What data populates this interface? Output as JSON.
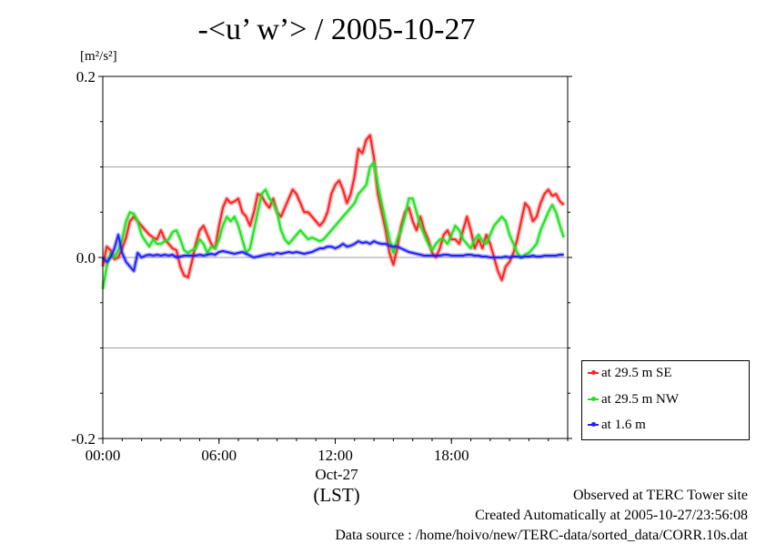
{
  "chart_data": {
    "type": "line",
    "title": "-<u’ w’> / 2005-10-27",
    "ylabel": "[m²/s²]",
    "ylim": [
      -0.2,
      0.2
    ],
    "xlim": [
      0,
      24
    ],
    "yticks": [
      {
        "value": 0.2,
        "label": "0.2"
      },
      {
        "value": 0.0,
        "label": "0.0"
      },
      {
        "value": -0.2,
        "label": "-0.2"
      }
    ],
    "ygrid": [
      0.1,
      0.0,
      -0.1
    ],
    "xticks": [
      {
        "value": 0,
        "label": "00:00"
      },
      {
        "value": 6,
        "label": "06:00"
      },
      {
        "value": 12,
        "label": "12:00"
      },
      {
        "value": 18,
        "label": "18:00"
      }
    ],
    "day_label": "Oct-27",
    "timezone_label": "(LST)",
    "grid": true,
    "legend_position": "lower-right",
    "series": [
      {
        "name": "at 29.5 m SE",
        "color": "#ff2020",
        "x": [
          0,
          0.2,
          0.4,
          0.6,
          0.8,
          1.0,
          1.2,
          1.4,
          1.6,
          1.8,
          2.0,
          2.2,
          2.4,
          2.6,
          2.8,
          3.0,
          3.2,
          3.4,
          3.6,
          3.8,
          4.0,
          4.2,
          4.4,
          4.6,
          4.8,
          5.0,
          5.2,
          5.4,
          5.6,
          5.8,
          6.0,
          6.2,
          6.4,
          6.6,
          6.8,
          7.0,
          7.2,
          7.4,
          7.6,
          7.8,
          8.0,
          8.2,
          8.4,
          8.6,
          8.8,
          9.0,
          9.2,
          9.4,
          9.6,
          9.8,
          10.0,
          10.2,
          10.4,
          10.6,
          10.8,
          11.0,
          11.2,
          11.4,
          11.6,
          11.8,
          12.0,
          12.2,
          12.4,
          12.6,
          12.8,
          13.0,
          13.2,
          13.4,
          13.6,
          13.8,
          14.0,
          14.2,
          14.4,
          14.6,
          14.8,
          15.0,
          15.2,
          15.4,
          15.6,
          15.8,
          16.0,
          16.2,
          16.4,
          16.6,
          16.8,
          17.0,
          17.2,
          17.4,
          17.6,
          17.8,
          18.0,
          18.2,
          18.4,
          18.6,
          18.8,
          19.0,
          19.2,
          19.4,
          19.6,
          19.8,
          20.0,
          20.2,
          20.4,
          20.6,
          20.8,
          21.0,
          21.2,
          21.4,
          21.6,
          21.8,
          22.0,
          22.2,
          22.4,
          22.6,
          22.8,
          23.0,
          23.2,
          23.4,
          23.6,
          23.8
        ],
        "values": [
          -0.01,
          0.012,
          0.008,
          -0.002,
          0.0,
          0.01,
          0.022,
          0.04,
          0.045,
          0.04,
          0.035,
          0.03,
          0.025,
          0.022,
          0.02,
          0.03,
          0.02,
          0.015,
          0.01,
          0.008,
          -0.01,
          -0.02,
          -0.022,
          -0.005,
          0.015,
          0.03,
          0.035,
          0.025,
          0.015,
          0.01,
          0.035,
          0.055,
          0.065,
          0.06,
          0.062,
          0.065,
          0.05,
          0.045,
          0.035,
          0.05,
          0.07,
          0.068,
          0.06,
          0.055,
          0.065,
          0.05,
          0.045,
          0.055,
          0.065,
          0.075,
          0.07,
          0.06,
          0.05,
          0.05,
          0.045,
          0.04,
          0.035,
          0.04,
          0.05,
          0.07,
          0.08,
          0.085,
          0.075,
          0.06,
          0.07,
          0.09,
          0.12,
          0.115,
          0.13,
          0.135,
          0.11,
          0.07,
          0.05,
          0.03,
          0.005,
          -0.008,
          0.01,
          0.035,
          0.05,
          0.055,
          0.04,
          0.03,
          0.045,
          0.03,
          0.02,
          0.005,
          0.0,
          0.01,
          0.025,
          0.03,
          0.02,
          0.02,
          0.015,
          0.03,
          0.045,
          0.03,
          0.01,
          0.02,
          0.01,
          0.025,
          0.015,
          0.0,
          -0.015,
          -0.025,
          -0.01,
          -0.005,
          0.005,
          0.02,
          0.04,
          0.06,
          0.055,
          0.04,
          0.045,
          0.06,
          0.07,
          0.075,
          0.068,
          0.07,
          0.062,
          0.058
        ]
      },
      {
        "name": "at 29.5 m NW",
        "color": "#20e020",
        "x": [
          0,
          0.2,
          0.4,
          0.6,
          0.8,
          1.0,
          1.2,
          1.4,
          1.6,
          1.8,
          2.0,
          2.2,
          2.4,
          2.6,
          2.8,
          3.0,
          3.2,
          3.4,
          3.6,
          3.8,
          4.0,
          4.2,
          4.4,
          4.6,
          4.8,
          5.0,
          5.2,
          5.4,
          5.6,
          5.8,
          6.0,
          6.2,
          6.4,
          6.6,
          6.8,
          7.0,
          7.2,
          7.4,
          7.6,
          7.8,
          8.0,
          8.2,
          8.4,
          8.6,
          8.8,
          9.0,
          9.2,
          9.4,
          9.6,
          9.8,
          10.0,
          10.2,
          10.4,
          10.6,
          10.8,
          11.0,
          11.2,
          11.4,
          11.6,
          11.8,
          12.0,
          12.2,
          12.4,
          12.6,
          12.8,
          13.0,
          13.2,
          13.4,
          13.6,
          13.8,
          14.0,
          14.2,
          14.4,
          14.6,
          14.8,
          15.0,
          15.2,
          15.4,
          15.6,
          15.8,
          16.0,
          16.2,
          16.4,
          16.6,
          16.8,
          17.0,
          17.2,
          17.4,
          17.6,
          17.8,
          18.0,
          18.2,
          18.4,
          18.6,
          18.8,
          19.0,
          19.2,
          19.4,
          19.6,
          19.8,
          20.0,
          20.2,
          20.4,
          20.6,
          20.8,
          21.0,
          21.2,
          21.4,
          21.6,
          21.8,
          22.0,
          22.2,
          22.4,
          22.6,
          22.8,
          23.0,
          23.2,
          23.4,
          23.6,
          23.8
        ],
        "values": [
          -0.035,
          -0.01,
          0.005,
          0.0,
          0.008,
          0.02,
          0.04,
          0.05,
          0.048,
          0.04,
          0.025,
          0.018,
          0.012,
          0.02,
          0.015,
          0.015,
          0.018,
          0.02,
          0.028,
          0.03,
          0.02,
          0.008,
          0.005,
          0.008,
          0.01,
          0.02,
          0.015,
          0.005,
          0.012,
          0.01,
          0.02,
          0.035,
          0.045,
          0.04,
          0.045,
          0.035,
          0.02,
          0.005,
          0.01,
          0.03,
          0.05,
          0.07,
          0.075,
          0.065,
          0.06,
          0.05,
          0.03,
          0.02,
          0.015,
          0.02,
          0.025,
          0.03,
          0.025,
          0.02,
          0.022,
          0.02,
          0.018,
          0.02,
          0.025,
          0.03,
          0.035,
          0.04,
          0.045,
          0.05,
          0.055,
          0.06,
          0.07,
          0.075,
          0.08,
          0.1,
          0.105,
          0.08,
          0.06,
          0.04,
          0.02,
          0.005,
          0.02,
          0.03,
          0.045,
          0.065,
          0.065,
          0.05,
          0.035,
          0.025,
          0.015,
          0.008,
          0.015,
          0.02,
          0.02,
          0.015,
          0.025,
          0.035,
          0.03,
          0.02,
          0.015,
          0.01,
          0.02,
          0.025,
          0.018,
          0.015,
          0.025,
          0.035,
          0.04,
          0.045,
          0.04,
          0.025,
          0.015,
          0.005,
          0.0,
          0.003,
          0.005,
          0.01,
          0.015,
          0.03,
          0.04,
          0.05,
          0.058,
          0.05,
          0.035,
          0.022
        ]
      },
      {
        "name": "at 1.6 m",
        "color": "#2020ff",
        "x": [
          0,
          0.2,
          0.4,
          0.6,
          0.8,
          1.0,
          1.2,
          1.4,
          1.6,
          1.8,
          2.0,
          2.2,
          2.4,
          2.6,
          2.8,
          3.0,
          3.2,
          3.4,
          3.6,
          3.8,
          4.0,
          4.2,
          4.4,
          4.6,
          4.8,
          5.0,
          5.2,
          5.4,
          5.6,
          5.8,
          6.0,
          6.2,
          6.4,
          6.6,
          6.8,
          7.0,
          7.2,
          7.4,
          7.6,
          7.8,
          8.0,
          8.2,
          8.4,
          8.6,
          8.8,
          9.0,
          9.2,
          9.4,
          9.6,
          9.8,
          10.0,
          10.2,
          10.4,
          10.6,
          10.8,
          11.0,
          11.2,
          11.4,
          11.6,
          11.8,
          12.0,
          12.2,
          12.4,
          12.6,
          12.8,
          13.0,
          13.2,
          13.4,
          13.6,
          13.8,
          14.0,
          14.2,
          14.4,
          14.6,
          14.8,
          15.0,
          15.2,
          15.4,
          15.6,
          15.8,
          16.0,
          16.2,
          16.4,
          16.6,
          16.8,
          17.0,
          17.2,
          17.4,
          17.6,
          17.8,
          18.0,
          18.2,
          18.4,
          18.6,
          18.8,
          19.0,
          19.2,
          19.4,
          19.6,
          19.8,
          20.0,
          20.2,
          20.4,
          20.6,
          20.8,
          21.0,
          21.2,
          21.4,
          21.6,
          21.8,
          22.0,
          22.2,
          22.4,
          22.6,
          22.8,
          23.0,
          23.2,
          23.4,
          23.6,
          23.8
        ],
        "values": [
          0.0,
          -0.005,
          0.0,
          0.01,
          0.025,
          0.005,
          -0.005,
          -0.01,
          -0.015,
          0.005,
          0.0,
          0.002,
          0.003,
          0.002,
          0.003,
          0.002,
          0.003,
          0.002,
          0.003,
          0.0,
          0.001,
          0.002,
          0.002,
          0.002,
          0.002,
          0.003,
          0.002,
          0.003,
          0.004,
          0.003,
          0.006,
          0.007,
          0.006,
          0.005,
          0.004,
          0.005,
          0.006,
          0.004,
          0.002,
          0.0,
          0.001,
          0.002,
          0.003,
          0.004,
          0.003,
          0.005,
          0.004,
          0.005,
          0.006,
          0.005,
          0.006,
          0.005,
          0.004,
          0.005,
          0.006,
          0.008,
          0.01,
          0.01,
          0.012,
          0.012,
          0.01,
          0.012,
          0.015,
          0.012,
          0.013,
          0.015,
          0.018,
          0.016,
          0.017,
          0.015,
          0.018,
          0.016,
          0.015,
          0.015,
          0.013,
          0.012,
          0.012,
          0.01,
          0.008,
          0.006,
          0.005,
          0.004,
          0.003,
          0.002,
          0.002,
          0.002,
          0.002,
          0.002,
          0.003,
          0.003,
          0.002,
          0.002,
          0.002,
          0.002,
          0.003,
          0.003,
          0.002,
          0.002,
          0.001,
          0.001,
          0.0,
          0.0,
          0.0,
          0.0,
          0.001,
          0.0,
          0.001,
          0.001,
          0.0,
          0.001,
          0.001,
          0.002,
          0.001,
          0.001,
          0.002,
          0.002,
          0.002,
          0.002,
          0.003,
          0.003
        ]
      }
    ]
  },
  "footer": {
    "line1": "Observed at TERC Tower site",
    "line2": "Created Automatically at 2005-10-27/23:56:08",
    "line3": "Data source : /home/hoivo/new/TERC-data/sorted_data/CORR.10s.dat"
  }
}
